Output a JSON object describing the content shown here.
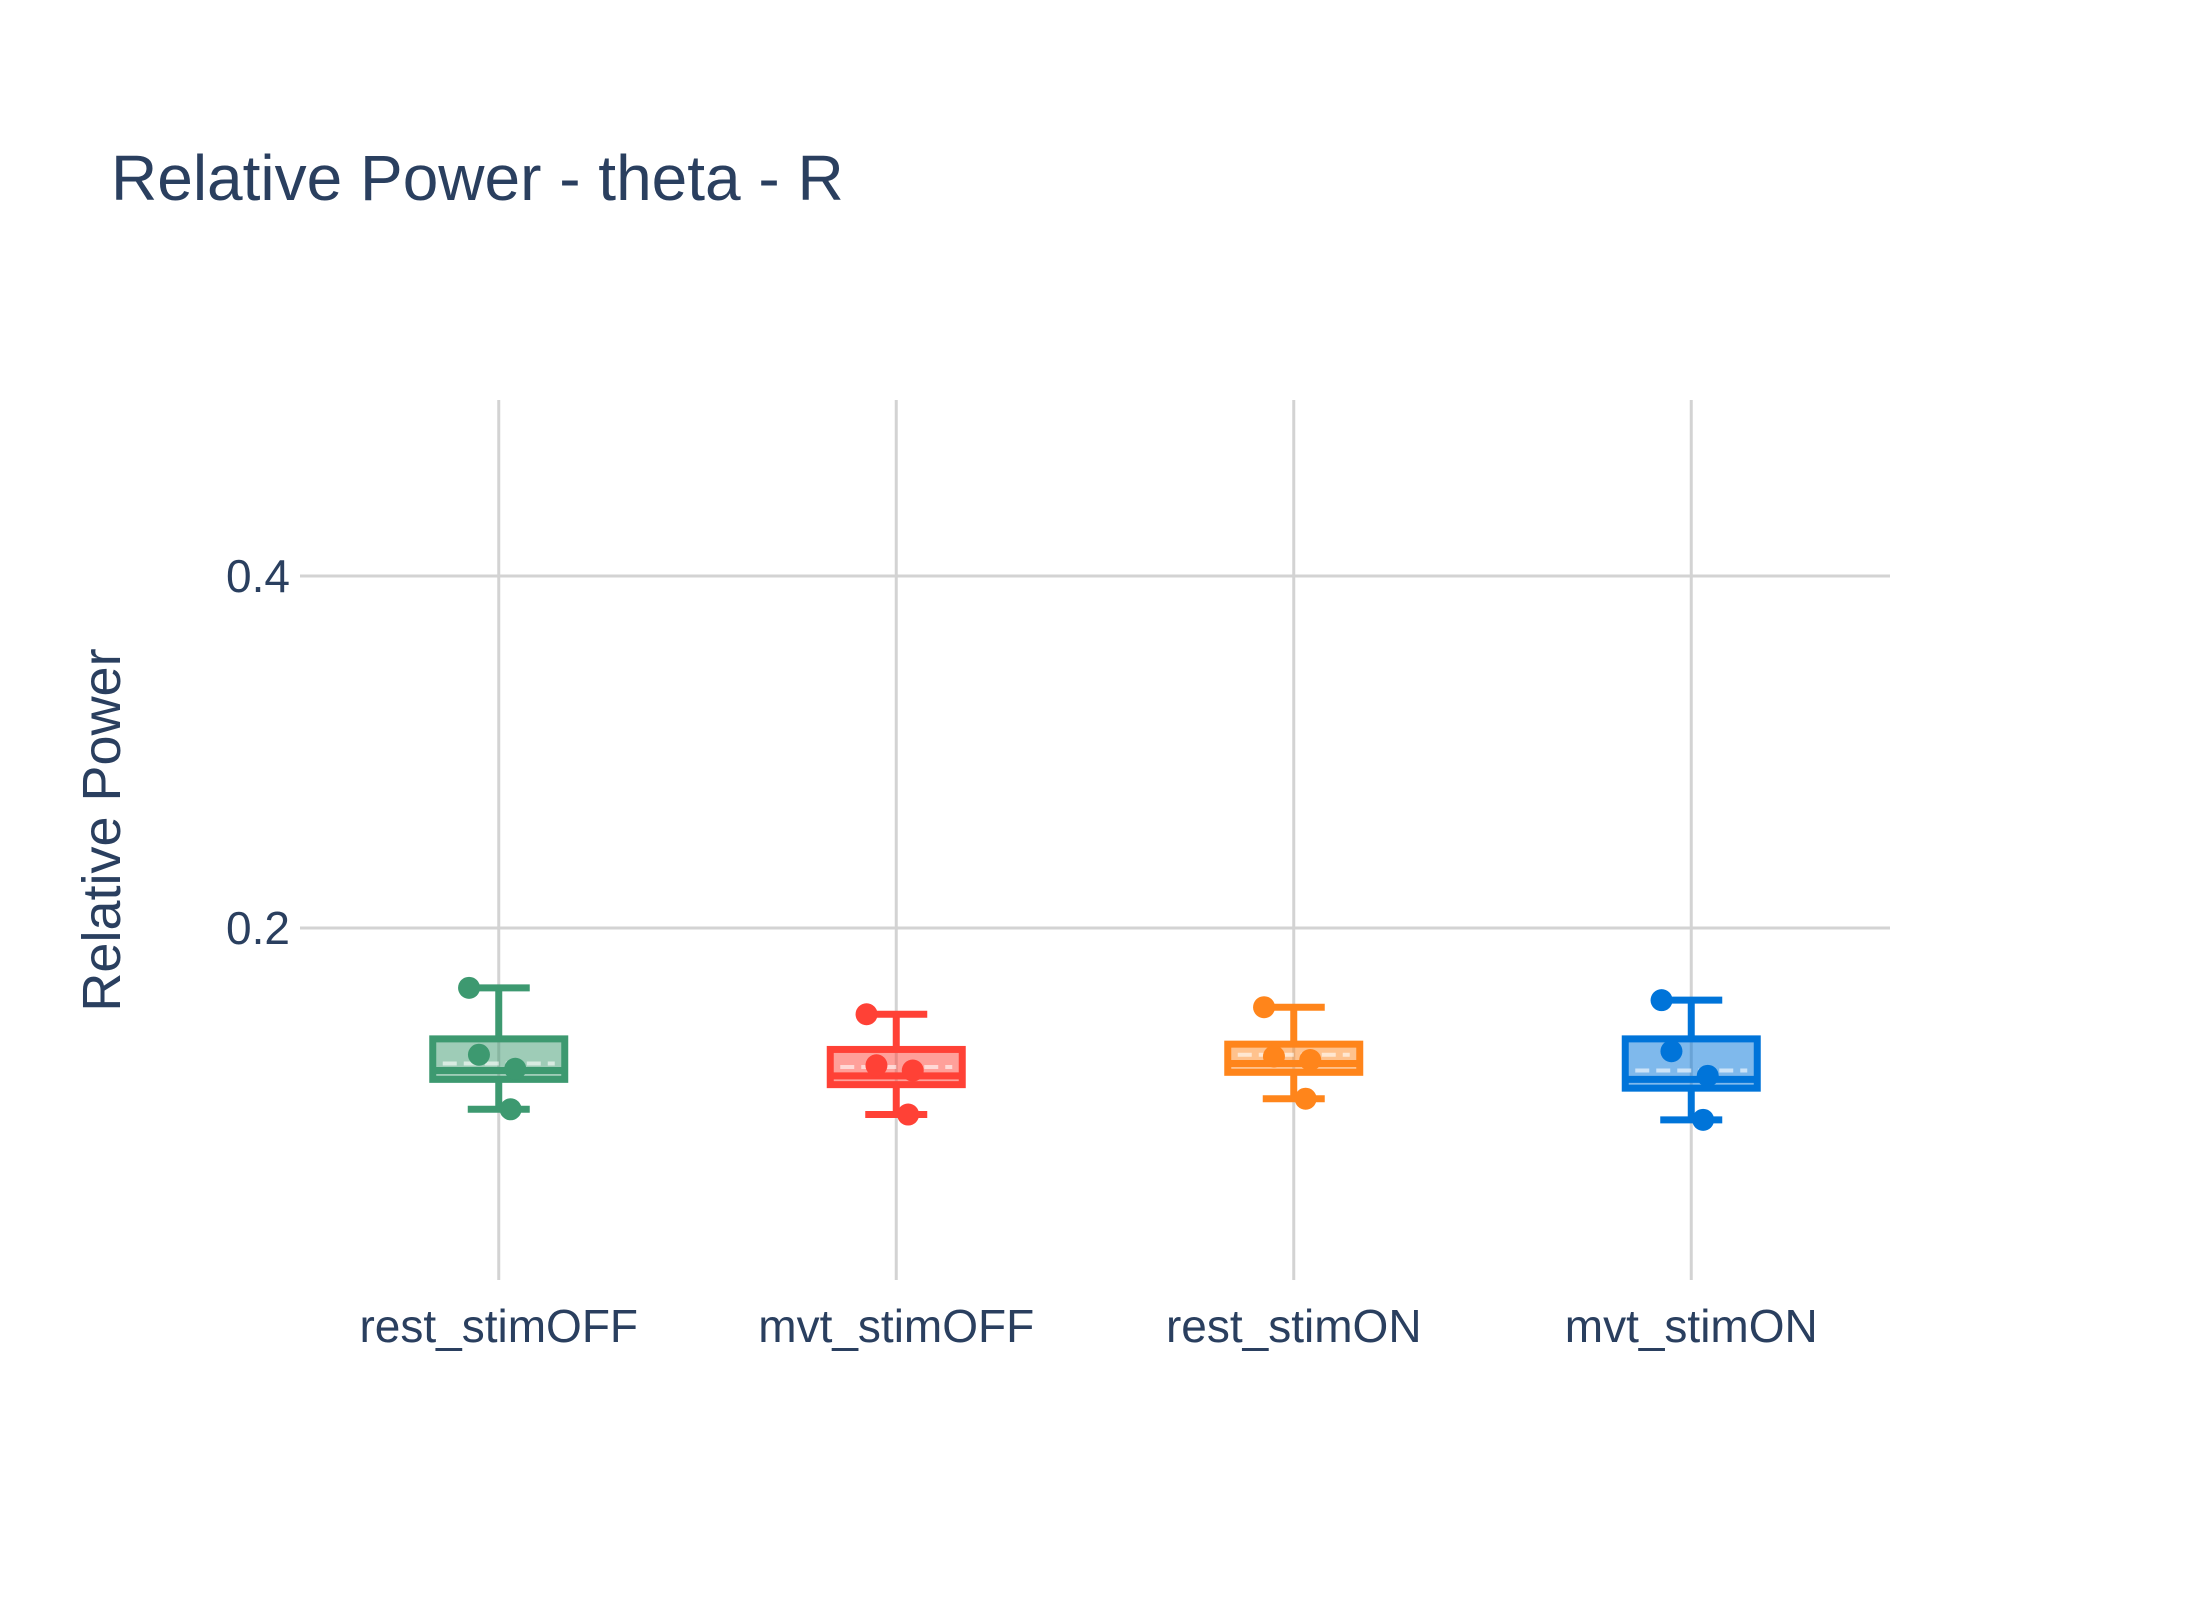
{
  "chart_data": {
    "type": "box",
    "title": "Relative Power - theta - R",
    "xlabel": "",
    "ylabel": "Relative Power",
    "ylim": [
      0.0,
      0.5
    ],
    "yticks": [
      0.2,
      0.4
    ],
    "ytick_labels": [
      "0.2",
      "0.4"
    ],
    "grid": true,
    "legend": "none",
    "categories": [
      "rest_stimOFF",
      "mvt_stimOFF",
      "rest_stimON",
      "mvt_stimON"
    ],
    "series": [
      {
        "category": "rest_stimOFF",
        "color": "#3d9970",
        "lower_fence": 0.097,
        "q1": 0.114,
        "median": 0.119,
        "mean": 0.123,
        "q3": 0.137,
        "upper_fence": 0.166,
        "points": [
          0.166,
          0.128,
          0.12,
          0.097
        ]
      },
      {
        "category": "mvt_stimOFF",
        "color": "#ff4136",
        "lower_fence": 0.094,
        "q1": 0.111,
        "median": 0.116,
        "mean": 0.121,
        "q3": 0.131,
        "upper_fence": 0.151,
        "points": [
          0.151,
          0.122,
          0.119,
          0.094
        ]
      },
      {
        "category": "rest_stimON",
        "color": "#ff851b",
        "lower_fence": 0.103,
        "q1": 0.118,
        "median": 0.123,
        "mean": 0.128,
        "q3": 0.134,
        "upper_fence": 0.155,
        "points": [
          0.155,
          0.127,
          0.125,
          0.103
        ]
      },
      {
        "category": "mvt_stimON",
        "color": "#0074d9",
        "lower_fence": 0.091,
        "q1": 0.109,
        "median": 0.114,
        "mean": 0.119,
        "q3": 0.137,
        "upper_fence": 0.159,
        "points": [
          0.159,
          0.13,
          0.116,
          0.091
        ]
      }
    ]
  }
}
